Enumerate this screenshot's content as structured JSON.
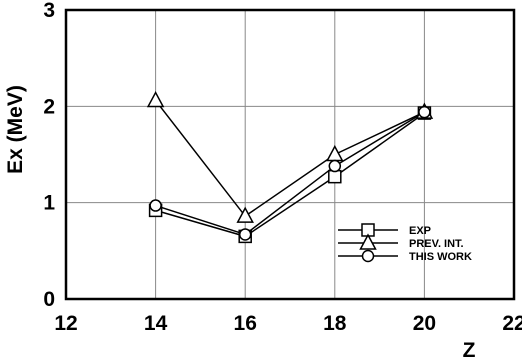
{
  "chart_data": {
    "type": "line",
    "title": "",
    "xlabel": "Z",
    "ylabel": "Ex (MeV)",
    "xlim": [
      12,
      22
    ],
    "ylim": [
      0,
      3
    ],
    "xticks": [
      12,
      14,
      16,
      18,
      20,
      22
    ],
    "yticks": [
      0,
      1,
      2,
      3
    ],
    "x_tick_labels": [
      "12",
      "14",
      "16",
      "18",
      "20",
      "22"
    ],
    "y_tick_labels": [
      "0",
      "1",
      "2",
      "3"
    ],
    "grid": true,
    "legend_position": "lower-right",
    "x": [
      14,
      16,
      18,
      20
    ],
    "series": [
      {
        "name": "EXP",
        "marker": "square",
        "values": [
          0.92,
          0.65,
          1.27,
          1.93
        ]
      },
      {
        "name": "PREV. INT.",
        "marker": "triangle",
        "values": [
          2.06,
          0.86,
          1.5,
          1.94
        ]
      },
      {
        "name": "THIS WORK",
        "marker": "circle",
        "values": [
          0.97,
          0.67,
          1.38,
          1.94
        ]
      }
    ]
  }
}
